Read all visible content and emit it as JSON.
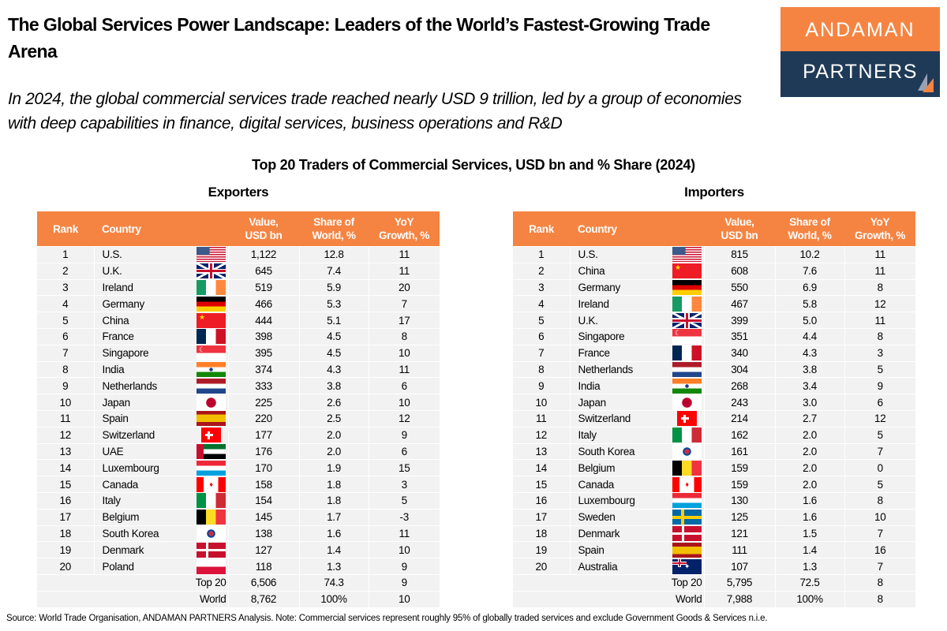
{
  "header": {
    "title": "The Global Services Power Landscape: Leaders of the World’s Fastest-Growing Trade Arena",
    "subtitle": "In 2024, the global commercial services trade reached nearly USD 9 trillion, led by a group of economies with deep capabilities in finance, digital services, business operations and R&D",
    "logo_top": "ANDAMAN",
    "logo_bottom": "PARTNERS"
  },
  "colors": {
    "header_orange": "#f58442",
    "logo_navy": "#1f3a57",
    "row_bg": "#f2f2f2"
  },
  "chart_title": "Top 20 Traders of Commercial Services, USD bn and % Share (2024)",
  "columns": [
    "Rank",
    "Country",
    "Value,\nUSD bn",
    "Share of\nWorld, %",
    "YoY\nGrowth, %"
  ],
  "exporters": {
    "label": "Exporters",
    "rows": [
      {
        "rank": "1",
        "country": "U.S.",
        "flag": "us",
        "value": "1,122",
        "share": "12.8",
        "yoy": "11"
      },
      {
        "rank": "2",
        "country": "U.K.",
        "flag": "uk",
        "value": "645",
        "share": "7.4",
        "yoy": "11"
      },
      {
        "rank": "3",
        "country": "Ireland",
        "flag": "ie",
        "value": "519",
        "share": "5.9",
        "yoy": "20"
      },
      {
        "rank": "4",
        "country": "Germany",
        "flag": "de",
        "value": "466",
        "share": "5.3",
        "yoy": "7"
      },
      {
        "rank": "5",
        "country": "China",
        "flag": "cn",
        "value": "444",
        "share": "5.1",
        "yoy": "17"
      },
      {
        "rank": "6",
        "country": "France",
        "flag": "fr",
        "value": "398",
        "share": "4.5",
        "yoy": "8"
      },
      {
        "rank": "7",
        "country": "Singapore",
        "flag": "sg",
        "value": "395",
        "share": "4.5",
        "yoy": "10"
      },
      {
        "rank": "8",
        "country": "India",
        "flag": "in",
        "value": "374",
        "share": "4.3",
        "yoy": "11"
      },
      {
        "rank": "9",
        "country": "Netherlands",
        "flag": "nl",
        "value": "333",
        "share": "3.8",
        "yoy": "6"
      },
      {
        "rank": "10",
        "country": "Japan",
        "flag": "jp",
        "value": "225",
        "share": "2.6",
        "yoy": "10"
      },
      {
        "rank": "11",
        "country": "Spain",
        "flag": "es",
        "value": "220",
        "share": "2.5",
        "yoy": "12"
      },
      {
        "rank": "12",
        "country": "Switzerland",
        "flag": "ch",
        "value": "177",
        "share": "2.0",
        "yoy": "9"
      },
      {
        "rank": "13",
        "country": "UAE",
        "flag": "ae",
        "value": "176",
        "share": "2.0",
        "yoy": "6"
      },
      {
        "rank": "14",
        "country": "Luxembourg",
        "flag": "lu",
        "value": "170",
        "share": "1.9",
        "yoy": "15"
      },
      {
        "rank": "15",
        "country": "Canada",
        "flag": "ca",
        "value": "158",
        "share": "1.8",
        "yoy": "3"
      },
      {
        "rank": "16",
        "country": "Italy",
        "flag": "it",
        "value": "154",
        "share": "1.8",
        "yoy": "5"
      },
      {
        "rank": "17",
        "country": "Belgium",
        "flag": "be",
        "value": "145",
        "share": "1.7",
        "yoy": "-3"
      },
      {
        "rank": "18",
        "country": "South Korea",
        "flag": "kr",
        "value": "138",
        "share": "1.6",
        "yoy": "11"
      },
      {
        "rank": "19",
        "country": "Denmark",
        "flag": "dk",
        "value": "127",
        "share": "1.4",
        "yoy": "10"
      },
      {
        "rank": "20",
        "country": "Poland",
        "flag": "pl",
        "value": "118",
        "share": "1.3",
        "yoy": "9"
      }
    ],
    "summary": [
      {
        "label": "Top 20",
        "value": "6,506",
        "share": "74.3",
        "yoy": "9"
      },
      {
        "label": "World",
        "value": "8,762",
        "share": "100%",
        "yoy": "10"
      }
    ]
  },
  "importers": {
    "label": "Importers",
    "rows": [
      {
        "rank": "1",
        "country": "U.S.",
        "flag": "us",
        "value": "815",
        "share": "10.2",
        "yoy": "11"
      },
      {
        "rank": "2",
        "country": "China",
        "flag": "cn",
        "value": "608",
        "share": "7.6",
        "yoy": "11"
      },
      {
        "rank": "3",
        "country": "Germany",
        "flag": "de",
        "value": "550",
        "share": "6.9",
        "yoy": "8"
      },
      {
        "rank": "4",
        "country": "Ireland",
        "flag": "ie",
        "value": "467",
        "share": "5.8",
        "yoy": "12"
      },
      {
        "rank": "5",
        "country": "U.K.",
        "flag": "uk",
        "value": "399",
        "share": "5.0",
        "yoy": "11"
      },
      {
        "rank": "6",
        "country": "Singapore",
        "flag": "sg",
        "value": "351",
        "share": "4.4",
        "yoy": "8"
      },
      {
        "rank": "7",
        "country": "France",
        "flag": "fr",
        "value": "340",
        "share": "4.3",
        "yoy": "3"
      },
      {
        "rank": "8",
        "country": "Netherlands",
        "flag": "nl",
        "value": "304",
        "share": "3.8",
        "yoy": "5"
      },
      {
        "rank": "9",
        "country": "India",
        "flag": "in",
        "value": "268",
        "share": "3.4",
        "yoy": "9"
      },
      {
        "rank": "10",
        "country": "Japan",
        "flag": "jp",
        "value": "243",
        "share": "3.0",
        "yoy": "6"
      },
      {
        "rank": "11",
        "country": "Switzerland",
        "flag": "ch",
        "value": "214",
        "share": "2.7",
        "yoy": "12"
      },
      {
        "rank": "12",
        "country": "Italy",
        "flag": "it",
        "value": "162",
        "share": "2.0",
        "yoy": "5"
      },
      {
        "rank": "13",
        "country": "South Korea",
        "flag": "kr",
        "value": "161",
        "share": "2.0",
        "yoy": "7"
      },
      {
        "rank": "14",
        "country": "Belgium",
        "flag": "be",
        "value": "159",
        "share": "2.0",
        "yoy": "0"
      },
      {
        "rank": "15",
        "country": "Canada",
        "flag": "ca",
        "value": "159",
        "share": "2.0",
        "yoy": "5"
      },
      {
        "rank": "16",
        "country": "Luxembourg",
        "flag": "lu",
        "value": "130",
        "share": "1.6",
        "yoy": "8"
      },
      {
        "rank": "17",
        "country": "Sweden",
        "flag": "se",
        "value": "125",
        "share": "1.6",
        "yoy": "10"
      },
      {
        "rank": "18",
        "country": "Denmark",
        "flag": "dk",
        "value": "121",
        "share": "1.5",
        "yoy": "7"
      },
      {
        "rank": "19",
        "country": "Spain",
        "flag": "es",
        "value": "111",
        "share": "1.4",
        "yoy": "16"
      },
      {
        "rank": "20",
        "country": "Australia",
        "flag": "au",
        "value": "107",
        "share": "1.3",
        "yoy": "7"
      }
    ],
    "summary": [
      {
        "label": "Top 20",
        "value": "5,795",
        "share": "72.5",
        "yoy": "8"
      },
      {
        "label": "World",
        "value": "7,988",
        "share": "100%",
        "yoy": "8"
      }
    ]
  },
  "footer": "Source: World Trade Organisation, ANDAMAN PARTNERS Analysis. Note: Commercial services represent roughly 95% of globally traded services and exclude Government Goods & Services n.i.e."
}
